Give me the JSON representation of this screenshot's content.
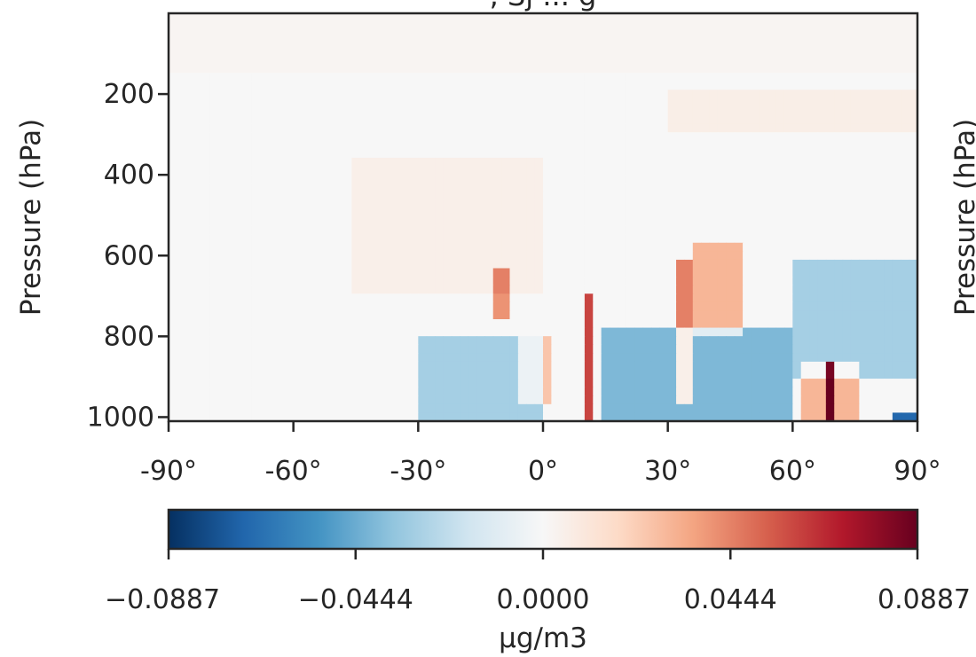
{
  "chart_data": {
    "type": "heatmap",
    "title": ", Sj  ...  g",
    "xlabel": "",
    "ylabel": "Pressure (hPa)",
    "right_ylabel": "Pressure (hPa)",
    "x_ticks": [
      -90,
      -60,
      -30,
      0,
      30,
      60,
      90
    ],
    "x_tick_labels": [
      "-90°",
      "-60°",
      "-30°",
      "0°",
      "30°",
      "60°",
      "90°"
    ],
    "xlim": [
      -90,
      90
    ],
    "y_ticks": [
      200,
      400,
      600,
      800,
      1000
    ],
    "y_tick_labels": [
      "200",
      "400",
      "600",
      "800",
      "1000"
    ],
    "ylim": [
      1010,
      0
    ],
    "colormap": "RdBu_r",
    "colorbar": {
      "label": "μg/m3",
      "ticks": [
        -0.0887,
        -0.0444,
        0.0,
        0.0444,
        0.0887
      ],
      "tick_labels": [
        "−0.0887",
        "−0.0444",
        "0.0000",
        "0.0444",
        "0.0887"
      ],
      "range": [
        -0.0887,
        0.0887
      ],
      "orientation": "horizontal",
      "placement": "bottom"
    },
    "features": [
      {
        "lat_range": [
          -90,
          90
        ],
        "p_range": [
          0,
          150
        ],
        "value": 0.002
      },
      {
        "lat_range": [
          30,
          90
        ],
        "p_range": [
          180,
          300
        ],
        "value": 0.006
      },
      {
        "lat_range": [
          -45,
          0
        ],
        "p_range": [
          350,
          700
        ],
        "value": 0.005
      },
      {
        "lat_range": [
          -12,
          -8
        ],
        "p_range": [
          640,
          760
        ],
        "value": 0.04
      },
      {
        "lat_range": [
          -6,
          2
        ],
        "p_range": [
          800,
          960
        ],
        "value": 0.025
      },
      {
        "lat_range": [
          10,
          12
        ],
        "p_range": [
          700,
          1000
        ],
        "value": 0.06
      },
      {
        "lat_range": [
          33,
          35
        ],
        "p_range": [
          600,
          960
        ],
        "value": 0.045
      },
      {
        "lat_range": [
          36,
          48
        ],
        "p_range": [
          560,
          800
        ],
        "value": 0.03
      },
      {
        "lat_range": [
          62,
          76
        ],
        "p_range": [
          860,
          1000
        ],
        "value": 0.03
      },
      {
        "lat_range": [
          68,
          70
        ],
        "p_range": [
          860,
          1000
        ],
        "value": 0.085
      },
      {
        "lat_range": [
          -30,
          0
        ],
        "p_range": [
          800,
          1000
        ],
        "value": -0.03
      },
      {
        "lat_range": [
          15,
          60
        ],
        "p_range": [
          780,
          1000
        ],
        "value": -0.04
      },
      {
        "lat_range": [
          60,
          90
        ],
        "p_range": [
          600,
          900
        ],
        "value": -0.03
      },
      {
        "lat_range": [
          84,
          90
        ],
        "p_range": [
          980,
          1010
        ],
        "value": -0.07
      }
    ]
  }
}
